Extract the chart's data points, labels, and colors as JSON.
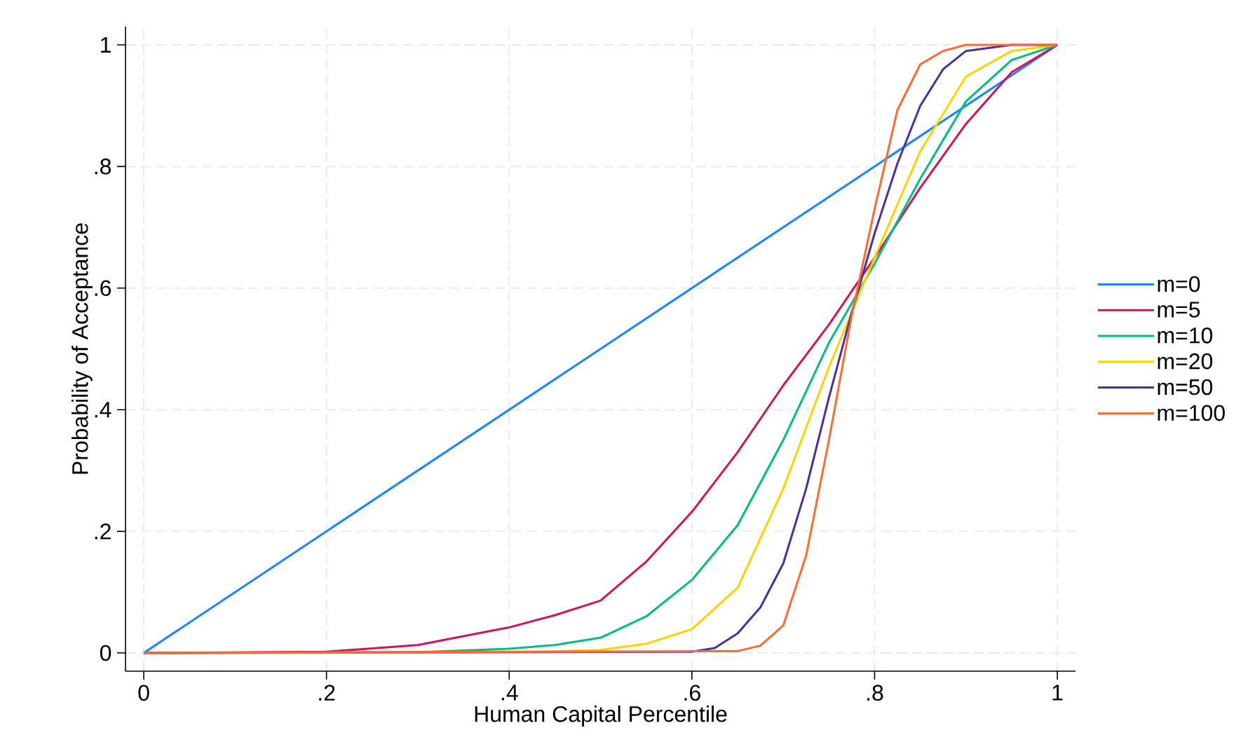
{
  "chart_data": {
    "type": "line",
    "xlabel": "Human Capital Percentile",
    "ylabel": "Probability of Acceptance",
    "xlim": [
      -0.02,
      1.02
    ],
    "ylim": [
      -0.03,
      1.03
    ],
    "xticks": [
      0,
      {
        "value": 0.2,
        "label": ".2"
      },
      {
        "value": 0.4,
        "label": ".4"
      },
      {
        "value": 0.6,
        "label": ".6"
      },
      {
        "value": 0.8,
        "label": ".8"
      },
      1
    ],
    "yticks": [
      0,
      {
        "value": 0.2,
        "label": ".2"
      },
      {
        "value": 0.4,
        "label": ".4"
      },
      {
        "value": 0.6,
        "label": ".6"
      },
      {
        "value": 0.8,
        "label": ".8"
      },
      1
    ],
    "grid": true,
    "legend": "right",
    "marker": "none",
    "line_style": "solid",
    "series": [
      {
        "name": "m=0",
        "color": "#1a85ff",
        "x": [
          0,
          0.5,
          1
        ],
        "values": [
          0,
          0.5,
          1
        ]
      },
      {
        "name": "m=5",
        "color": "#d41159",
        "x": [
          0,
          0.2,
          0.3,
          0.4,
          0.45,
          0.5,
          0.55,
          0.6,
          0.65,
          0.7,
          0.75,
          0.8,
          0.85,
          0.9,
          0.95,
          1
        ],
        "values": [
          0,
          0.002,
          0.013,
          0.042,
          0.062,
          0.086,
          0.15,
          0.232,
          0.33,
          0.44,
          0.54,
          0.65,
          0.765,
          0.87,
          0.955,
          1
        ]
      },
      {
        "name": "m=10",
        "color": "#00bf7f",
        "x": [
          0,
          0.3,
          0.4,
          0.45,
          0.5,
          0.55,
          0.6,
          0.65,
          0.7,
          0.75,
          0.8,
          0.85,
          0.9,
          0.95,
          1
        ],
        "values": [
          0,
          0.001,
          0.007,
          0.013,
          0.025,
          0.06,
          0.12,
          0.21,
          0.35,
          0.51,
          0.64,
          0.78,
          0.907,
          0.975,
          1
        ]
      },
      {
        "name": "m=20",
        "color": "#ffd300",
        "x": [
          0,
          0.4,
          0.5,
          0.55,
          0.6,
          0.65,
          0.7,
          0.75,
          0.8,
          0.85,
          0.9,
          0.95,
          1
        ],
        "values": [
          0,
          0.001,
          0.005,
          0.015,
          0.039,
          0.107,
          0.27,
          0.47,
          0.65,
          0.825,
          0.948,
          0.99,
          1
        ]
      },
      {
        "name": "m=50",
        "color": "#4b2fa0",
        "x": [
          0,
          0.6,
          0.625,
          0.65,
          0.675,
          0.7,
          0.725,
          0.75,
          0.775,
          0.8,
          0.825,
          0.85,
          0.875,
          0.9,
          0.95,
          1
        ],
        "values": [
          0,
          0.002,
          0.008,
          0.032,
          0.075,
          0.147,
          0.27,
          0.42,
          0.56,
          0.69,
          0.805,
          0.9,
          0.96,
          0.99,
          1,
          1
        ]
      },
      {
        "name": "m=100",
        "color": "#ff6a33",
        "x": [
          0,
          0.65,
          0.675,
          0.7,
          0.725,
          0.75,
          0.775,
          0.8,
          0.825,
          0.85,
          0.875,
          0.9,
          1
        ],
        "values": [
          0,
          0.003,
          0.012,
          0.045,
          0.16,
          0.35,
          0.555,
          0.73,
          0.893,
          0.968,
          0.99,
          1,
          1
        ]
      }
    ]
  }
}
